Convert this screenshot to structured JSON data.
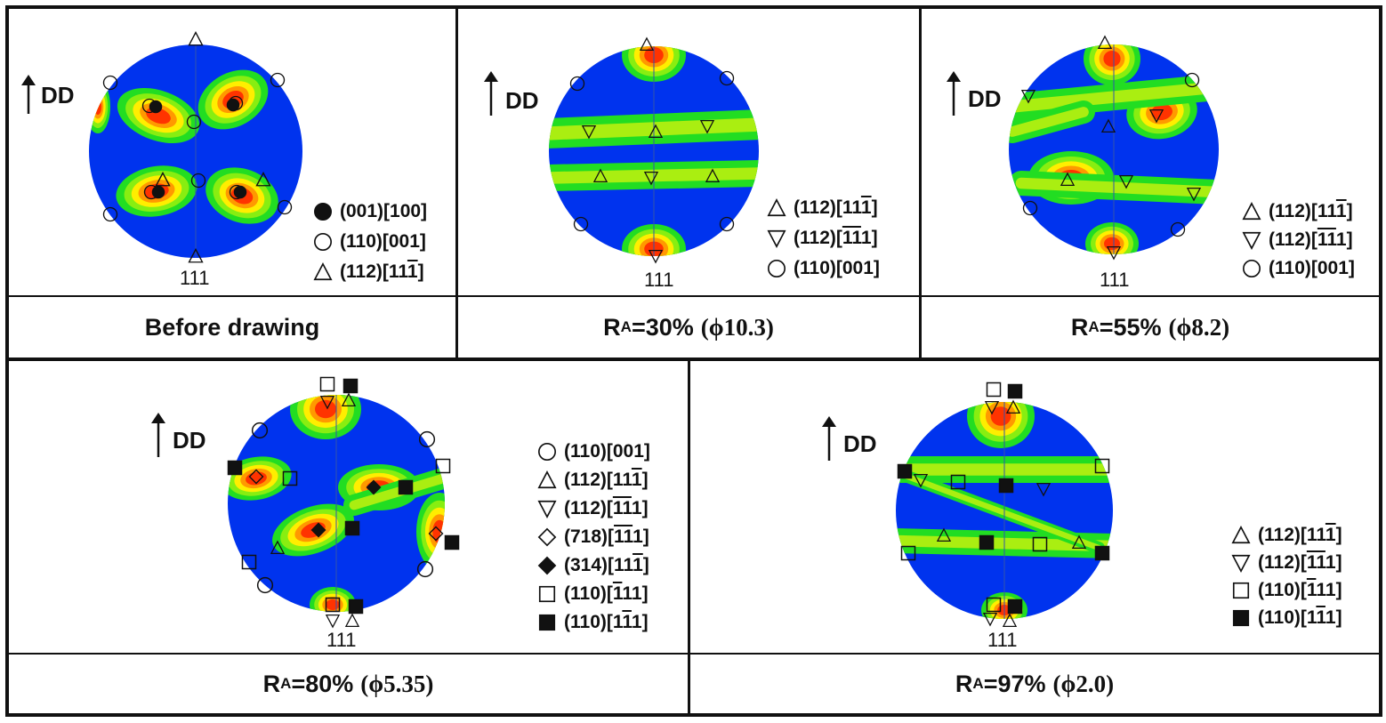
{
  "direction_label": "DD",
  "pole_label": "111",
  "panels": [
    {
      "id": "before",
      "caption": {
        "text": "Before drawing"
      },
      "legend": [
        {
          "symbol": "circle-filled",
          "parts": [
            [
              "(001)[100]",
              false
            ]
          ]
        },
        {
          "symbol": "circle-open",
          "parts": [
            [
              "(110)[001]",
              false
            ]
          ]
        },
        {
          "symbol": "triangle-up",
          "parts": [
            [
              "(112)[11",
              false
            ],
            [
              "1",
              true
            ],
            [
              "]",
              false
            ]
          ]
        }
      ]
    },
    {
      "id": "ra30",
      "caption": {
        "main": "R",
        "sub": "A",
        "rest": "=30%",
        "paren": "(ϕ10.3)"
      },
      "legend": [
        {
          "symbol": "triangle-up",
          "parts": [
            [
              "(112)[11",
              false
            ],
            [
              "1",
              true
            ],
            [
              "]",
              false
            ]
          ]
        },
        {
          "symbol": "triangle-down",
          "parts": [
            [
              "(112)[",
              false
            ],
            [
              "11",
              true
            ],
            [
              "1]",
              false
            ]
          ]
        },
        {
          "symbol": "circle-open",
          "parts": [
            [
              "(110)[001]",
              false
            ]
          ]
        }
      ]
    },
    {
      "id": "ra55",
      "caption": {
        "main": "R",
        "sub": "A",
        "rest": "=55%",
        "paren": "(ϕ8.2)"
      },
      "legend": [
        {
          "symbol": "triangle-up",
          "parts": [
            [
              "(112)[11",
              false
            ],
            [
              "1",
              true
            ],
            [
              "]",
              false
            ]
          ]
        },
        {
          "symbol": "triangle-down",
          "parts": [
            [
              "(112)[",
              false
            ],
            [
              "11",
              true
            ],
            [
              "1]",
              false
            ]
          ]
        },
        {
          "symbol": "circle-open",
          "parts": [
            [
              "(110)[001]",
              false
            ]
          ]
        }
      ]
    },
    {
      "id": "ra80",
      "caption": {
        "main": "R",
        "sub": "A",
        "rest": "=80%",
        "paren": "(ϕ5.35)"
      },
      "legend": [
        {
          "symbol": "circle-open",
          "parts": [
            [
              "(110)[001]",
              false
            ]
          ]
        },
        {
          "symbol": "triangle-up",
          "parts": [
            [
              "(112)[11",
              false
            ],
            [
              "1",
              true
            ],
            [
              "]",
              false
            ]
          ]
        },
        {
          "symbol": "triangle-down",
          "parts": [
            [
              "(112)[",
              false
            ],
            [
              "11",
              true
            ],
            [
              "1]",
              false
            ]
          ]
        },
        {
          "symbol": "diamond-open",
          "parts": [
            [
              "(718)[",
              false
            ],
            [
              "11",
              true
            ],
            [
              "1]",
              false
            ]
          ]
        },
        {
          "symbol": "diamond-filled",
          "parts": [
            [
              "(314)[11",
              false
            ],
            [
              "1",
              true
            ],
            [
              "]",
              false
            ]
          ]
        },
        {
          "symbol": "square-open",
          "parts": [
            [
              "(110)[",
              false
            ],
            [
              "1",
              true
            ],
            [
              "11]",
              false
            ]
          ]
        },
        {
          "symbol": "square-filled",
          "parts": [
            [
              "(110)[1",
              false
            ],
            [
              "1",
              true
            ],
            [
              "1]",
              false
            ]
          ]
        }
      ]
    },
    {
      "id": "ra97",
      "caption": {
        "main": "R",
        "sub": "A",
        "rest": "=97%",
        "paren": "(ϕ2.0)"
      },
      "legend": [
        {
          "symbol": "triangle-up",
          "parts": [
            [
              "(112)[11",
              false
            ],
            [
              "1",
              true
            ],
            [
              "]",
              false
            ]
          ]
        },
        {
          "symbol": "triangle-down",
          "parts": [
            [
              "(112)[",
              false
            ],
            [
              "11",
              true
            ],
            [
              "1]",
              false
            ]
          ]
        },
        {
          "symbol": "square-open",
          "parts": [
            [
              "(110)[",
              false
            ],
            [
              "1",
              true
            ],
            [
              "11]",
              false
            ]
          ]
        },
        {
          "symbol": "square-filled",
          "parts": [
            [
              "(110)[1",
              false
            ],
            [
              "1",
              true
            ],
            [
              "1]",
              false
            ]
          ]
        }
      ]
    }
  ],
  "colors": {
    "background": "#0033ee",
    "low": "#22dd22",
    "mid": "#ffee00",
    "high": "#ff3300",
    "peak": "#dd0000"
  }
}
